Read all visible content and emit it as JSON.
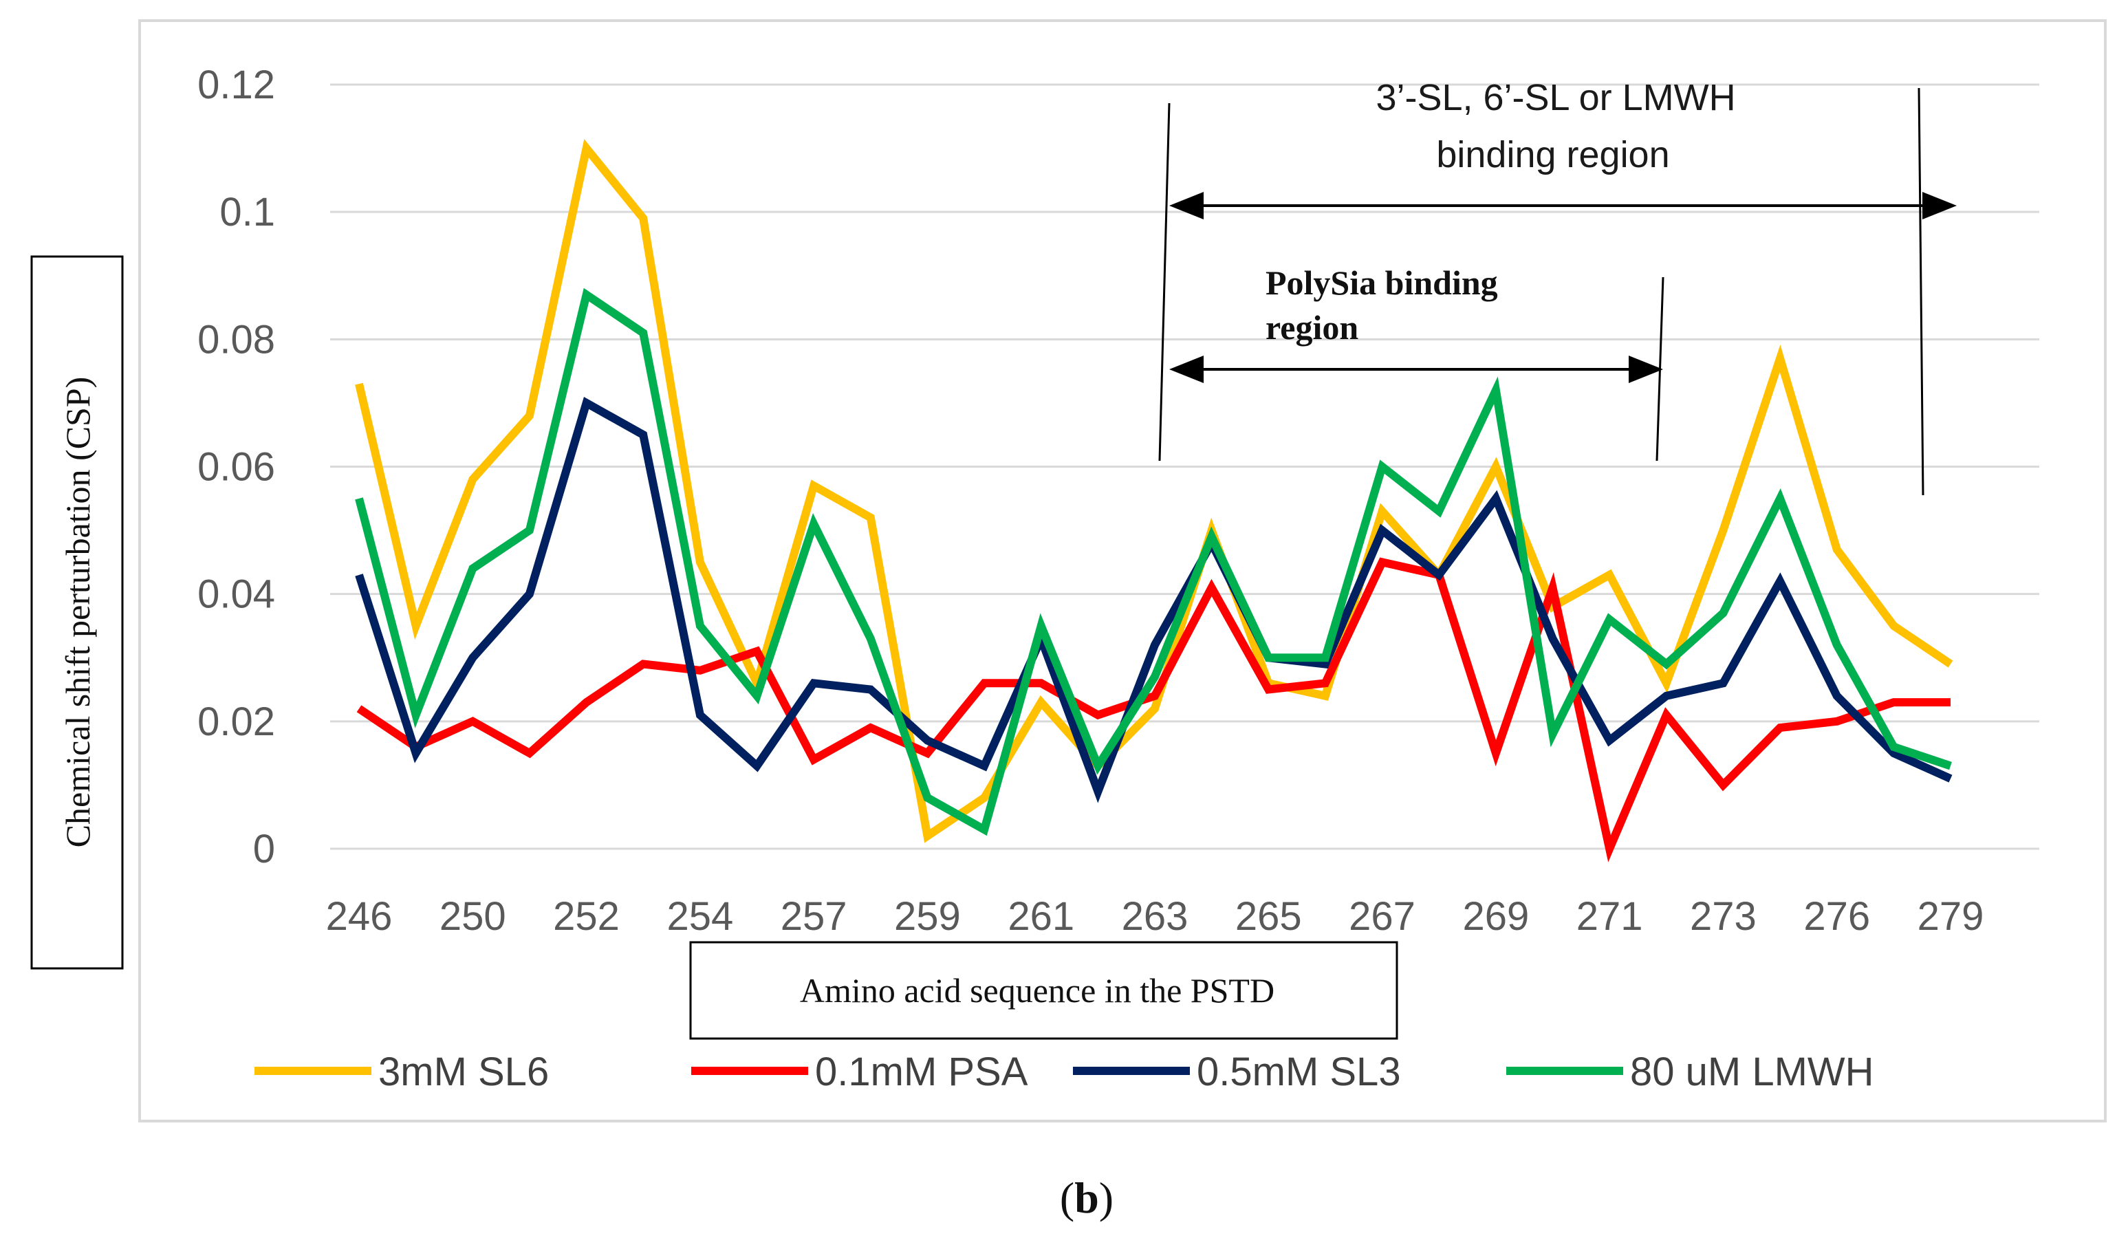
{
  "chart_data": {
    "type": "line",
    "title": "",
    "xlabel": "Amino acid sequence in the PSTD",
    "ylabel": "Chemical shift perturbation (CSP)",
    "ylim": [
      0,
      0.12
    ],
    "y_ticks": [
      "0",
      "0.02",
      "0.04",
      "0.06",
      "0.08",
      "0.1",
      "0.12"
    ],
    "y_tick_values": [
      0,
      0.02,
      0.04,
      0.06,
      0.08,
      0.1,
      0.12
    ],
    "x_tick_labels": [
      "246",
      "250",
      "252",
      "254",
      "257",
      "259",
      "261",
      "263",
      "265",
      "267",
      "269",
      "271",
      "273",
      "276",
      "279"
    ],
    "n_points": 29,
    "grid": true,
    "legend_position": "bottom",
    "series": [
      {
        "name": "3mM SL6",
        "color": "#FFC000",
        "values": [
          0.073,
          0.035,
          0.058,
          0.068,
          0.11,
          0.099,
          0.045,
          0.026,
          0.057,
          0.052,
          0.002,
          0.008,
          0.023,
          0.013,
          0.022,
          0.05,
          0.026,
          0.024,
          0.053,
          0.043,
          0.06,
          0.038,
          0.043,
          0.026,
          0.05,
          0.077,
          0.047,
          0.035,
          0.029
        ]
      },
      {
        "name": "0.1mM PSA",
        "color": "#FF0000",
        "values": [
          0.022,
          0.016,
          0.02,
          0.015,
          0.023,
          0.029,
          0.028,
          0.031,
          0.014,
          0.019,
          0.015,
          0.026,
          0.026,
          0.021,
          0.024,
          0.041,
          0.025,
          0.026,
          0.045,
          0.043,
          0.015,
          0.041,
          0.0,
          0.021,
          0.01,
          0.019,
          0.02,
          0.023,
          0.023
        ]
      },
      {
        "name": "0.5mM SL3",
        "color": "#002060",
        "values": [
          0.043,
          0.015,
          0.03,
          0.04,
          0.07,
          0.065,
          0.021,
          0.013,
          0.026,
          0.025,
          0.017,
          0.013,
          0.033,
          0.009,
          0.032,
          0.048,
          0.03,
          0.029,
          0.05,
          0.043,
          0.055,
          0.033,
          0.017,
          0.024,
          0.026,
          0.042,
          0.024,
          0.015,
          0.011
        ]
      },
      {
        "name": "80 uM LMWH",
        "color": "#00B050",
        "values": [
          0.055,
          0.021,
          0.044,
          0.05,
          0.087,
          0.081,
          0.035,
          0.024,
          0.051,
          0.033,
          0.008,
          0.003,
          0.035,
          0.013,
          0.027,
          0.049,
          0.03,
          0.03,
          0.06,
          0.053,
          0.072,
          0.018,
          0.036,
          0.029,
          0.037,
          0.055,
          0.032,
          0.016,
          0.013
        ]
      }
    ],
    "annotations": {
      "region_outer_line1": "3’-SL, 6’-SL or LMWH",
      "region_outer_line2": "binding region",
      "region_inner_line1": "PolySia binding",
      "region_inner_line2": "region"
    }
  },
  "caption": {
    "open": "(",
    "letter": "b",
    "close": ")"
  }
}
